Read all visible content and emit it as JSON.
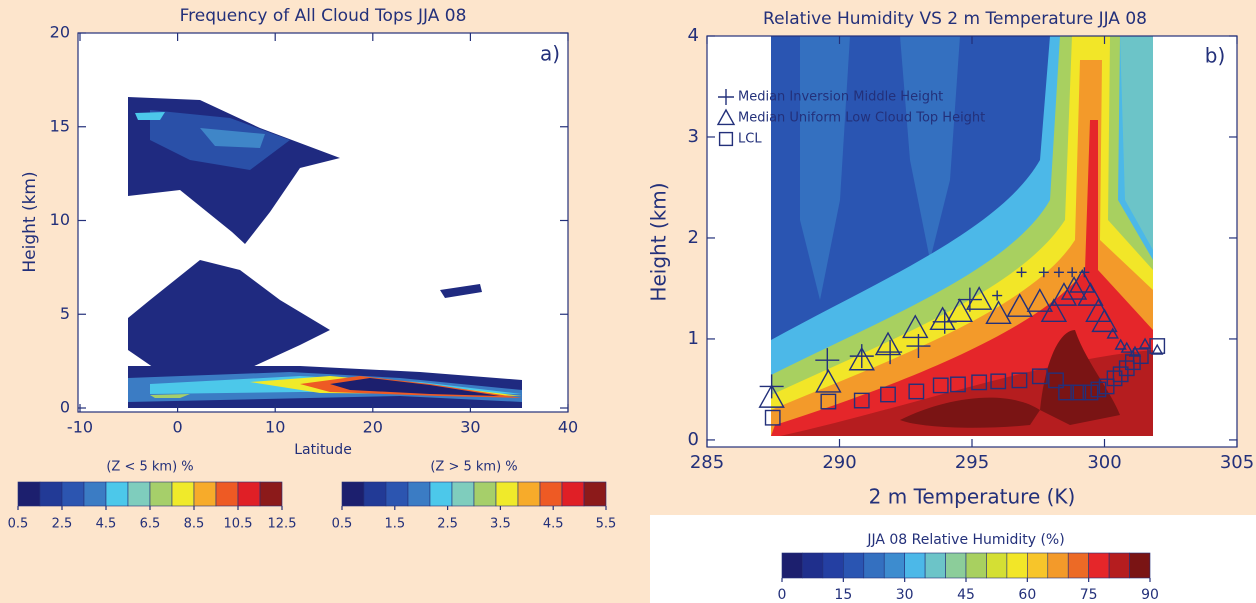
{
  "chart_data": [
    {
      "type": "contour",
      "title": "Frequency of All Cloud Tops JJA 08",
      "panel_label": "a)",
      "x_label": "Latitude",
      "y_label": "Height (km)",
      "xlim": [
        -10,
        40
      ],
      "xticks": [
        -10,
        0,
        10,
        20,
        30,
        40
      ],
      "ylim": [
        0,
        20
      ],
      "yticks": [
        0,
        5,
        10,
        15,
        20
      ],
      "colorbars": [
        {
          "title": "(Z < 5 km) %",
          "ticks": [
            0.5,
            2.5,
            4.5,
            6.5,
            8.5,
            10.5,
            12.5
          ],
          "lim": [
            0.5,
            12.5
          ],
          "colors": [
            "#1c1f6e",
            "#223a96",
            "#2c55b0",
            "#3b7cc4",
            "#4cc8ea",
            "#7fcdbd",
            "#a6cf6a",
            "#f0ea2a",
            "#f7ab2a",
            "#ee5a24",
            "#e01f26",
            "#8c1a1a"
          ]
        },
        {
          "title": "(Z > 5 km) %",
          "ticks": [
            0.5,
            1.5,
            2.5,
            3.5,
            4.5,
            5.5
          ],
          "lim": [
            0.5,
            5.5
          ],
          "colors": [
            "#1c1f6e",
            "#223a96",
            "#2c55b0",
            "#3b7cc4",
            "#4cc8ea",
            "#7fcdbd",
            "#a6cf6a",
            "#f0ea2a",
            "#f7ab2a",
            "#ee5a24",
            "#e01f26",
            "#8c1a1a"
          ]
        }
      ]
    },
    {
      "type": "contour_scatter",
      "title": "Relative Humidity VS 2 m Temperature JJA 08",
      "panel_label": "b)",
      "x_label": "2 m Temperature (K)",
      "y_label": "Height (km)",
      "xlim": [
        285,
        305
      ],
      "xticks": [
        285,
        290,
        295,
        300,
        305
      ],
      "ylim": [
        -0.07,
        4
      ],
      "yticks": [
        0,
        1,
        2,
        3,
        4
      ],
      "series": [
        {
          "name": "Median Inversion Middle Height",
          "marker": "plus",
          "color": "#23307a",
          "x": [
            287.44,
            289.54,
            290.84,
            291.91,
            292.98,
            293.97,
            294.92,
            295.95,
            296.87,
            297.71,
            298.28,
            298.78,
            299.24
          ],
          "y": [
            0.53,
            0.79,
            0.83,
            0.87,
            0.93,
            1.17,
            1.39,
            1.43,
            1.66,
            1.66,
            1.66,
            1.66,
            1.66
          ]
        },
        {
          "name": "Median Uniform Low Cloud Top Height",
          "marker": "triangle",
          "color": "#23307a",
          "x": [
            287.44,
            289.58,
            290.84,
            291.83,
            292.86,
            293.89,
            294.54,
            295.27,
            296.0,
            296.8,
            297.56,
            298.09,
            298.47,
            298.85,
            299.16,
            299.47,
            299.77,
            300.0,
            300.31,
            300.61,
            300.84,
            301.15,
            301.53,
            301.99
          ],
          "y": [
            0.42,
            0.57,
            0.79,
            0.94,
            1.11,
            1.19,
            1.27,
            1.39,
            1.25,
            1.32,
            1.37,
            1.27,
            1.43,
            1.49,
            1.56,
            1.43,
            1.27,
            1.17,
            1.05,
            0.94,
            0.91,
            0.87,
            0.95,
            0.89
          ]
        },
        {
          "name": "LCL",
          "marker": "square",
          "color": "#23307a",
          "x": [
            287.48,
            289.58,
            290.84,
            291.83,
            292.9,
            293.82,
            294.47,
            295.27,
            295.99,
            296.79,
            297.56,
            298.17,
            298.55,
            299.01,
            299.47,
            299.77,
            300.08,
            300.38,
            300.61,
            300.84,
            301.07,
            301.37,
            301.99
          ],
          "y": [
            0.22,
            0.38,
            0.39,
            0.45,
            0.48,
            0.54,
            0.55,
            0.57,
            0.58,
            0.59,
            0.63,
            0.59,
            0.47,
            0.47,
            0.47,
            0.5,
            0.53,
            0.61,
            0.65,
            0.71,
            0.77,
            0.83,
            0.93
          ]
        }
      ],
      "colorbars": [
        {
          "title": "JJA 08 Relative Humidity (%)",
          "ticks": [
            0,
            15,
            30,
            45,
            60,
            75,
            90
          ],
          "lim": [
            0,
            90
          ],
          "colors": [
            "#1c1f6e",
            "#1f2f8c",
            "#243fa2",
            "#2a55b2",
            "#3470c0",
            "#3d8ccf",
            "#4cb8e8",
            "#6cc4c8",
            "#8ccd9a",
            "#a8d060",
            "#d4df34",
            "#f2e628",
            "#f7c52a",
            "#f39a2a",
            "#ec6a26",
            "#e5262a",
            "#b51d1f",
            "#7a1414"
          ]
        }
      ]
    }
  ]
}
